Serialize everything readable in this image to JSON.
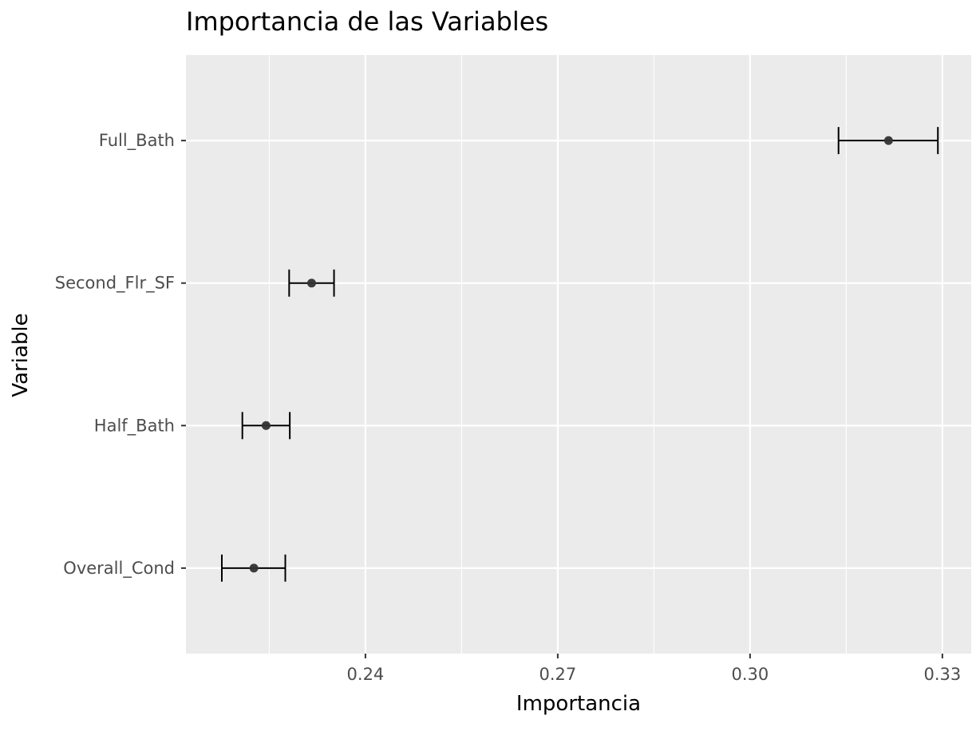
{
  "chart_data": {
    "type": "errorbar",
    "title": "Importancia de las Variables",
    "xlabel": "Importancia",
    "ylabel": "Variable",
    "xlim": [
      0.212,
      0.3345
    ],
    "xticks": [
      0.24,
      0.27,
      0.3,
      0.33
    ],
    "xtick_labels": [
      "0.24",
      "0.27",
      "0.30",
      "0.33"
    ],
    "categories": [
      "Full_Bath",
      "Second_Flr_SF",
      "Half_Bath",
      "Overall_Cond"
    ],
    "points": [
      {
        "variable": "Full_Bath",
        "importance": 0.3216,
        "lower": 0.3138,
        "upper": 0.3293
      },
      {
        "variable": "Second_Flr_SF",
        "importance": 0.2316,
        "lower": 0.2281,
        "upper": 0.2351
      },
      {
        "variable": "Half_Bath",
        "importance": 0.2245,
        "lower": 0.2208,
        "upper": 0.2282
      },
      {
        "variable": "Overall_Cond",
        "importance": 0.2226,
        "lower": 0.2176,
        "upper": 0.2275
      }
    ],
    "grid": true,
    "colors": {
      "panel": "#ebebeb",
      "grid": "#ffffff",
      "point": "#333333",
      "errorbar": "#000000",
      "tick_text": "#4d4d4d"
    }
  }
}
